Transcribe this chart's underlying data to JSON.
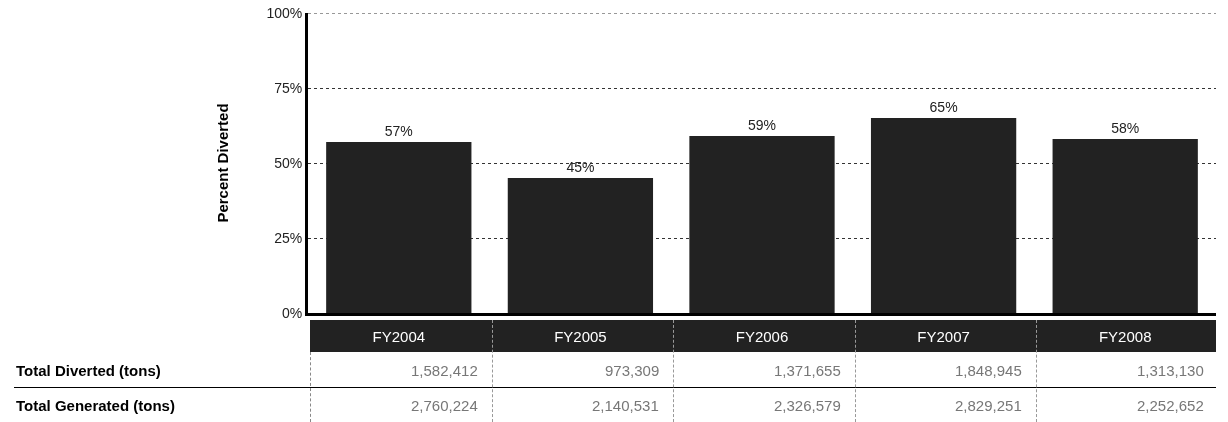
{
  "chart_data": {
    "type": "bar",
    "ylabel": "Percent Diverted",
    "categories": [
      "FY2004",
      "FY2005",
      "FY2006",
      "FY2007",
      "FY2008"
    ],
    "values": [
      57,
      45,
      59,
      65,
      58
    ],
    "color": "#222222",
    "value_labels": [
      "57%",
      "45%",
      "59%",
      "65%",
      "58%"
    ],
    "ylim": [
      0,
      100
    ],
    "yticks": [
      {
        "value": 0,
        "label": "0%"
      },
      {
        "value": 25,
        "label": "25%"
      },
      {
        "value": 50,
        "label": "50%"
      },
      {
        "value": 75,
        "label": "75%"
      },
      {
        "value": 100,
        "label": "100%"
      }
    ],
    "grid": "y",
    "annotations": [
      "Total Diverted (tons)",
      "1,582,412",
      "973,309",
      "1,371,655",
      "1,848,945",
      "1,313,130",
      "Total Generated (tons)",
      "2,760,224",
      "2,140,531",
      "2,326,579",
      "2,829,251",
      "2,252,652"
    ]
  }
}
